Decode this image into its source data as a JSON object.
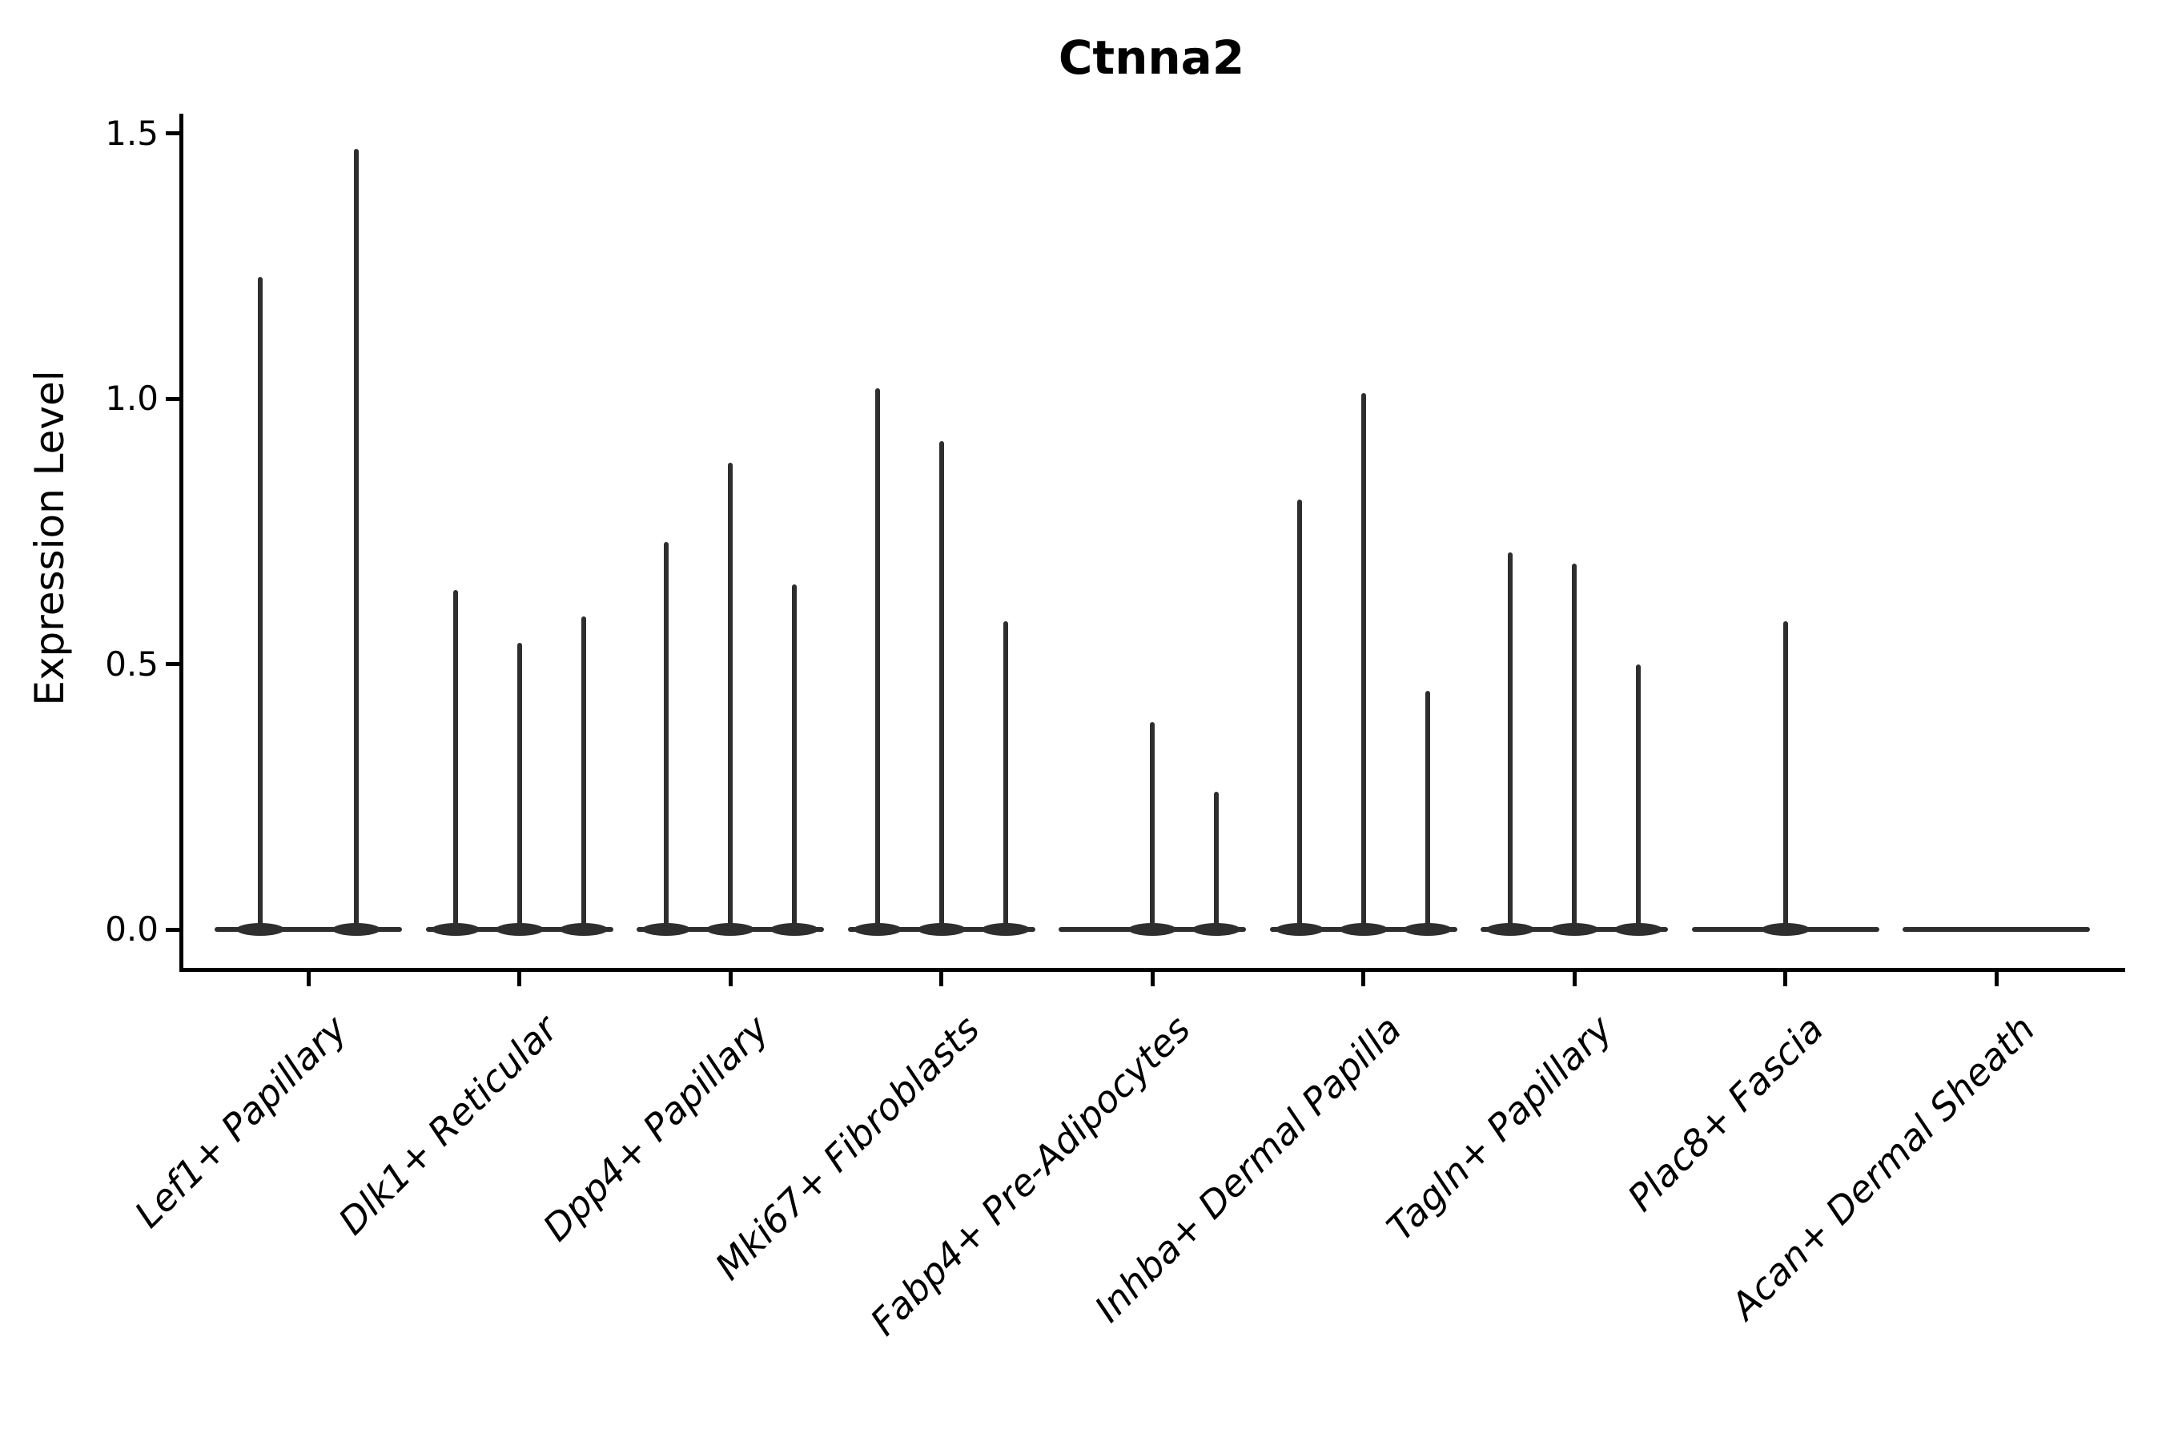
{
  "title": "Ctnna2",
  "axes": {
    "ylabel": "Expression Level",
    "ytick_labels": [
      "0.0",
      "0.5",
      "1.0",
      "1.5"
    ]
  },
  "colors": {
    "violin": "#2e2e2e",
    "axis": "#000000",
    "text": "#000000",
    "background": "#ffffff"
  },
  "chart_data": {
    "type": "violin",
    "title": "Ctnna2",
    "xlabel": "",
    "ylabel": "Expression Level",
    "ylim": [
      -0.07,
      1.54
    ],
    "yticks": [
      0.0,
      0.5,
      1.0,
      1.5
    ],
    "ytick_labels": [
      "0.0",
      "0.5",
      "1.0",
      "1.5"
    ],
    "grid": false,
    "legend": "none",
    "categories": [
      "Lef1+ Papillary",
      "Dlk1+ Reticular",
      "Dpp4+ Papillary",
      "Mki67+ Fibroblasts",
      "Fabp4+ Pre-Adipocytes",
      "Inhba+ Dermal Papilla",
      "Tagln+ Papillary",
      "Plac8+ Fascia",
      "Acan+ Dermal Sheath"
    ],
    "groups": [
      {
        "category": "Lef1+ Papillary",
        "violin_peaks": [
          1.23,
          1.47
        ]
      },
      {
        "category": "Dlk1+ Reticular",
        "violin_peaks": [
          0.64,
          0.54,
          0.59
        ]
      },
      {
        "category": "Dpp4+ Papillary",
        "violin_peaks": [
          0.73,
          0.88,
          0.65
        ]
      },
      {
        "category": "Mki67+ Fibroblasts",
        "violin_peaks": [
          1.02,
          0.92,
          0.58
        ]
      },
      {
        "category": "Fabp4+ Pre-Adipocytes",
        "violin_peaks": [
          0.0,
          0.39,
          0.26
        ]
      },
      {
        "category": "Inhba+ Dermal Papilla",
        "violin_peaks": [
          0.81,
          1.01,
          0.45
        ]
      },
      {
        "category": "Tagln+ Papillary",
        "violin_peaks": [
          0.71,
          0.69,
          0.5
        ]
      },
      {
        "category": "Plac8+ Fascia",
        "violin_peaks": [
          0.0,
          0.58,
          0.0
        ]
      },
      {
        "category": "Acan+ Dermal Sheath",
        "violin_peaks": [
          0.0,
          0.0,
          0.0
        ]
      }
    ]
  }
}
